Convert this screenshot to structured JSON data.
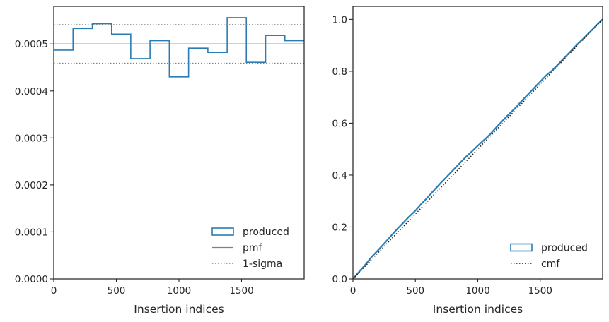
{
  "chart_data": [
    {
      "type": "step-histogram",
      "xlabel": "Insertion indices",
      "ylabel": "",
      "xlim": [
        0,
        2000
      ],
      "ylim": [
        0,
        0.00058
      ],
      "xticks": [
        0,
        500,
        1000,
        1500
      ],
      "xtick_labels": [
        "0",
        "500",
        "1000",
        "1500"
      ],
      "yticks": [
        0,
        0.0001,
        0.0002,
        0.0003,
        0.0004,
        0.0005
      ],
      "ytick_labels": [
        "0.0000",
        "0.0001",
        "0.0002",
        "0.0003",
        "0.0004",
        "0.0005"
      ],
      "bin_edges": [
        0,
        154,
        308,
        462,
        615,
        769,
        923,
        1077,
        1231,
        1385,
        1538,
        1692,
        1846,
        2000
      ],
      "series": [
        {
          "name": "produced",
          "style": "step",
          "color": "#2a7db4",
          "values": [
            0.000487,
            0.000533,
            0.000543,
            0.000521,
            0.000469,
            0.000507,
            0.00043,
            0.000491,
            0.000482,
            0.000556,
            0.000461,
            0.000518,
            0.000507
          ]
        },
        {
          "name": "pmf",
          "style": "hline",
          "color": "#808080",
          "value": 0.0005
        },
        {
          "name": "1-sigma",
          "style": "hline-dotted",
          "color": "#808080",
          "values": [
            0.000541,
            0.000459
          ]
        }
      ],
      "legend": {
        "position": "lower right",
        "entries": [
          {
            "label": "produced",
            "kind": "patch"
          },
          {
            "label": "pmf",
            "kind": "line"
          },
          {
            "label": "1-sigma",
            "kind": "dotted"
          }
        ]
      }
    },
    {
      "type": "line",
      "xlabel": "Insertion indices",
      "ylabel": "",
      "xlim": [
        0,
        2000
      ],
      "ylim": [
        0,
        1.05
      ],
      "xticks": [
        0,
        500,
        1000,
        1500
      ],
      "xtick_labels": [
        "0",
        "500",
        "1000",
        "1500"
      ],
      "yticks": [
        0,
        0.2,
        0.4,
        0.6,
        0.8,
        1.0
      ],
      "ytick_labels": [
        "0.0",
        "0.2",
        "0.4",
        "0.6",
        "0.8",
        "1.0"
      ],
      "series": [
        {
          "name": "produced",
          "style": "solid",
          "color": "#2a7db4",
          "x": [
            0,
            50,
            100,
            150,
            200,
            250,
            300,
            350,
            400,
            450,
            500,
            550,
            600,
            650,
            700,
            750,
            800,
            850,
            900,
            950,
            1000,
            1050,
            1100,
            1150,
            1200,
            1250,
            1300,
            1350,
            1400,
            1450,
            1500,
            1550,
            1600,
            1650,
            1700,
            1750,
            1800,
            1850,
            1900,
            1950,
            2000
          ],
          "y": [
            0,
            0.028,
            0.055,
            0.085,
            0.11,
            0.136,
            0.163,
            0.19,
            0.215,
            0.24,
            0.263,
            0.29,
            0.315,
            0.342,
            0.368,
            0.393,
            0.418,
            0.443,
            0.468,
            0.49,
            0.513,
            0.535,
            0.558,
            0.585,
            0.61,
            0.635,
            0.658,
            0.685,
            0.71,
            0.735,
            0.76,
            0.785,
            0.805,
            0.83,
            0.855,
            0.88,
            0.905,
            0.928,
            0.952,
            0.977,
            1.0
          ]
        },
        {
          "name": "cmf",
          "style": "dotted",
          "color": "#1a1a1a",
          "x": [
            0,
            2000
          ],
          "y": [
            0,
            1.0
          ]
        }
      ],
      "legend": {
        "position": "lower right",
        "entries": [
          {
            "label": "produced",
            "kind": "patch"
          },
          {
            "label": "cmf",
            "kind": "dotted"
          }
        ]
      }
    }
  ]
}
